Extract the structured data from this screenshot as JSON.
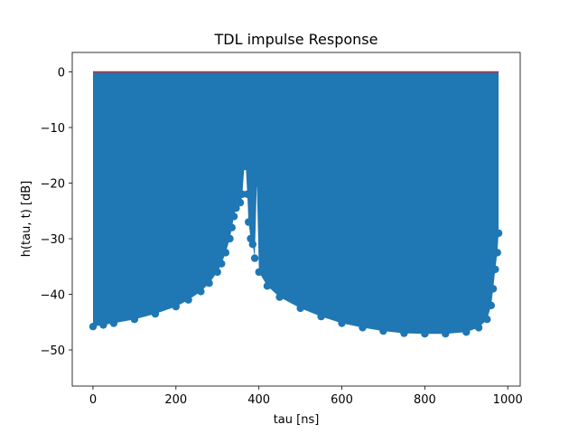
{
  "chart_data": {
    "type": "stem",
    "title": "TDL impulse Response",
    "xlabel": "tau [ns]",
    "ylabel": "h(tau, t) [dB]",
    "xlim": [
      -50,
      1030
    ],
    "ylim": [
      -56.5,
      3.5
    ],
    "xticks": [
      0,
      200,
      400,
      600,
      800,
      1000
    ],
    "yticks": [
      0,
      -10,
      -20,
      -30,
      -40,
      -50
    ],
    "grid": false,
    "legend": "none",
    "baseline": 0,
    "colors": {
      "stem": "#1f77b4",
      "baseline": "#d62728"
    },
    "stem_envelope": [
      [
        0,
        -45.8
      ],
      [
        25,
        -45.5
      ],
      [
        50,
        -45.2
      ],
      [
        100,
        -44.5
      ],
      [
        150,
        -43.5
      ],
      [
        200,
        -42.2
      ],
      [
        230,
        -41
      ],
      [
        260,
        -39.5
      ],
      [
        280,
        -38
      ],
      [
        300,
        -36
      ],
      [
        310,
        -34.5
      ],
      [
        320,
        -32.5
      ],
      [
        330,
        -30
      ],
      [
        335,
        -28
      ],
      [
        340,
        -26
      ],
      [
        345,
        -24.5
      ],
      [
        350,
        -22.5
      ],
      [
        355,
        -23.5
      ],
      [
        360,
        -22
      ],
      [
        365,
        -17
      ],
      [
        368,
        -16.5
      ],
      [
        372,
        -22
      ],
      [
        375,
        -27
      ],
      [
        380,
        -30
      ],
      [
        385,
        -31
      ],
      [
        390,
        -33.5
      ],
      [
        395,
        -20
      ],
      [
        400,
        -36
      ],
      [
        420,
        -38.5
      ],
      [
        450,
        -40.5
      ],
      [
        500,
        -42.5
      ],
      [
        550,
        -44
      ],
      [
        600,
        -45.2
      ],
      [
        650,
        -46
      ],
      [
        700,
        -46.6
      ],
      [
        750,
        -47
      ],
      [
        800,
        -47.1
      ],
      [
        850,
        -47.1
      ],
      [
        900,
        -46.8
      ],
      [
        930,
        -46
      ],
      [
        950,
        -44.5
      ],
      [
        960,
        -42
      ],
      [
        965,
        -39
      ],
      [
        970,
        -35.5
      ],
      [
        975,
        -32.5
      ],
      [
        978,
        -29
      ]
    ]
  }
}
